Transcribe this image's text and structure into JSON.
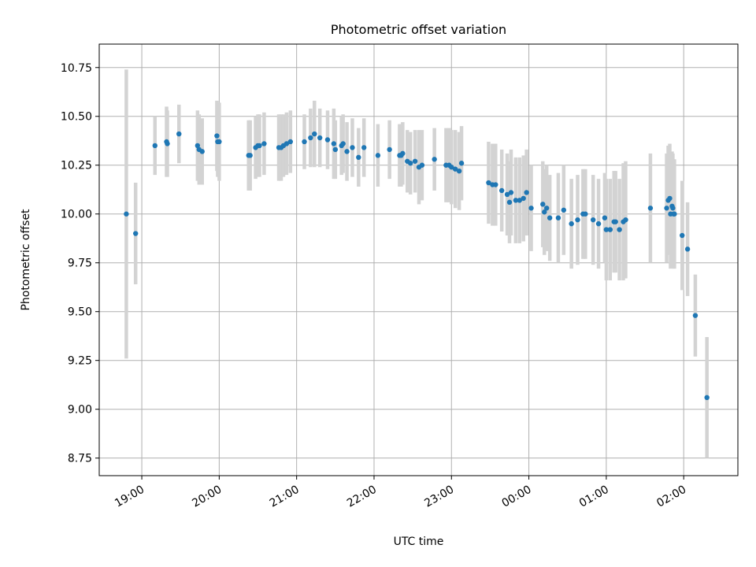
{
  "chart_data": {
    "type": "scatter",
    "title": "Photometric offset variation",
    "xlabel": "UTC time",
    "ylabel": "Photometric offset",
    "grid": true,
    "xlim_hours": [
      18.45,
      26.7
    ],
    "ylim": [
      8.66,
      10.87
    ],
    "x_ticks": [
      {
        "hour": 19,
        "label": "19:00"
      },
      {
        "hour": 20,
        "label": "20:00"
      },
      {
        "hour": 21,
        "label": "21:00"
      },
      {
        "hour": 22,
        "label": "22:00"
      },
      {
        "hour": 23,
        "label": "23:00"
      },
      {
        "hour": 24,
        "label": "00:00"
      },
      {
        "hour": 25,
        "label": "01:00"
      },
      {
        "hour": 26,
        "label": "02:00"
      }
    ],
    "y_ticks": [
      {
        "value": 8.75,
        "label": "8.75"
      },
      {
        "value": 9.0,
        "label": "9.00"
      },
      {
        "value": 9.25,
        "label": "9.25"
      },
      {
        "value": 9.5,
        "label": "9.50"
      },
      {
        "value": 9.75,
        "label": "9.75"
      },
      {
        "value": 10.0,
        "label": "10.00"
      },
      {
        "value": 10.25,
        "label": "10.25"
      },
      {
        "value": 10.5,
        "label": "10.50"
      },
      {
        "value": 10.75,
        "label": "10.75"
      }
    ],
    "point_color": "#1f77b4",
    "errorbar_color": "#d3d3d3",
    "series": [
      {
        "x_hours": [
          18.8,
          18.92,
          19.17,
          19.32,
          19.33,
          19.48,
          19.72,
          19.74,
          19.78,
          19.97,
          19.98,
          20.0,
          20.38,
          20.4,
          20.47,
          20.5,
          20.52,
          20.58,
          20.77,
          20.8,
          20.83,
          20.87,
          20.92,
          21.1,
          21.18,
          21.23,
          21.3,
          21.4,
          21.48,
          21.5,
          21.58,
          21.6,
          21.65,
          21.72,
          21.8,
          21.87,
          22.05,
          22.2,
          22.33,
          22.35,
          22.37,
          22.43,
          22.47,
          22.53,
          22.58,
          22.62,
          22.78,
          22.93,
          22.97,
          23.0,
          23.05,
          23.1,
          23.13,
          23.48,
          23.53,
          23.57,
          23.65,
          23.72,
          23.75,
          23.77,
          23.83,
          23.88,
          23.93,
          23.97,
          24.03,
          24.18,
          24.2,
          24.23,
          24.27,
          24.38,
          24.45,
          24.55,
          24.63,
          24.7,
          24.73,
          24.83,
          24.9,
          24.98,
          25.0,
          25.05,
          25.1,
          25.12,
          25.17,
          25.22,
          25.25,
          25.57,
          25.78,
          25.8,
          25.82,
          25.83,
          25.85,
          25.86,
          25.87,
          25.88,
          25.98,
          26.05,
          26.15,
          26.3
        ],
        "y": [
          10.0,
          9.9,
          10.35,
          10.37,
          10.36,
          10.41,
          10.35,
          10.33,
          10.32,
          10.4,
          10.37,
          10.37,
          10.3,
          10.3,
          10.34,
          10.35,
          10.35,
          10.36,
          10.34,
          10.34,
          10.35,
          10.36,
          10.37,
          10.37,
          10.39,
          10.41,
          10.39,
          10.38,
          10.36,
          10.33,
          10.35,
          10.36,
          10.32,
          10.34,
          10.29,
          10.34,
          10.3,
          10.33,
          10.3,
          10.3,
          10.31,
          10.27,
          10.26,
          10.27,
          10.24,
          10.25,
          10.28,
          10.25,
          10.25,
          10.24,
          10.23,
          10.22,
          10.26,
          10.16,
          10.15,
          10.15,
          10.12,
          10.1,
          10.06,
          10.11,
          10.07,
          10.07,
          10.08,
          10.11,
          10.03,
          10.05,
          10.01,
          10.03,
          9.98,
          9.98,
          10.02,
          9.95,
          9.97,
          10.0,
          10.0,
          9.97,
          9.95,
          9.98,
          9.92,
          9.92,
          9.96,
          9.96,
          9.92,
          9.96,
          9.97,
          10.03,
          10.03,
          10.07,
          10.08,
          10.0,
          10.04,
          10.03,
          10.0,
          10.0,
          9.89,
          9.82,
          9.48,
          9.06
        ],
        "err": [
          0.74,
          0.26,
          0.15,
          0.18,
          0.17,
          0.15,
          0.18,
          0.18,
          0.17,
          0.18,
          0.18,
          0.2,
          0.18,
          0.18,
          0.16,
          0.16,
          0.16,
          0.16,
          0.17,
          0.17,
          0.16,
          0.16,
          0.16,
          0.14,
          0.15,
          0.17,
          0.15,
          0.15,
          0.18,
          0.15,
          0.15,
          0.15,
          0.15,
          0.15,
          0.15,
          0.15,
          0.16,
          0.15,
          0.16,
          0.16,
          0.16,
          0.16,
          0.16,
          0.16,
          0.19,
          0.18,
          0.16,
          0.19,
          0.19,
          0.19,
          0.2,
          0.2,
          0.19,
          0.21,
          0.21,
          0.21,
          0.21,
          0.21,
          0.21,
          0.22,
          0.22,
          0.22,
          0.22,
          0.22,
          0.22,
          0.22,
          0.22,
          0.22,
          0.22,
          0.23,
          0.23,
          0.23,
          0.23,
          0.23,
          0.23,
          0.23,
          0.23,
          0.23,
          0.26,
          0.26,
          0.26,
          0.26,
          0.26,
          0.3,
          0.3,
          0.28,
          0.28,
          0.28,
          0.28,
          0.28,
          0.28,
          0.28,
          0.28,
          0.28,
          0.28,
          0.24,
          0.21,
          0.31
        ]
      }
    ]
  }
}
